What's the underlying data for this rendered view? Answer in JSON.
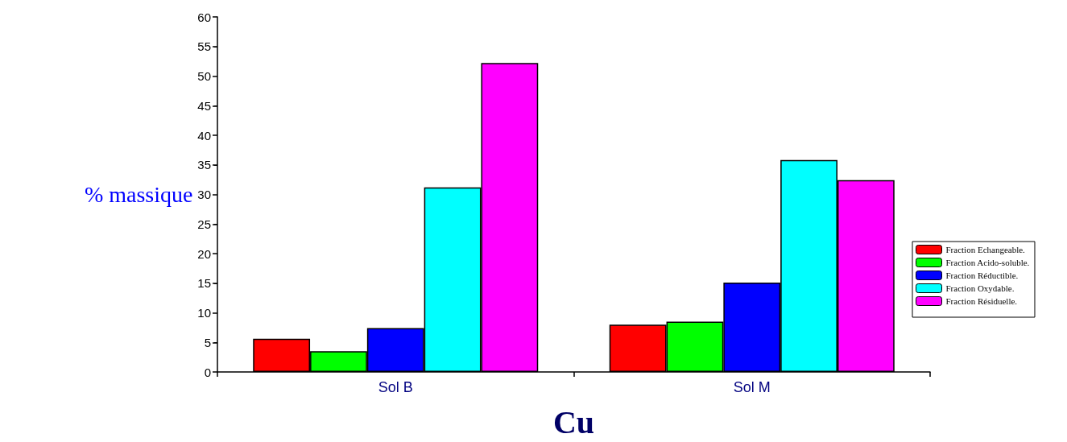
{
  "chart_data": {
    "type": "bar",
    "xlabel": "Cu",
    "ylabel": "% massique",
    "categories": [
      "Sol B",
      "Sol M"
    ],
    "series": [
      {
        "name": "Fraction Echangeable.",
        "color": "#ff0000",
        "values": [
          5.6,
          8.0
        ]
      },
      {
        "name": "Fraction Acido-soluble.",
        "color": "#00ff00",
        "values": [
          3.5,
          8.5
        ]
      },
      {
        "name": "Fraction Réductible.",
        "color": "#0000ff",
        "values": [
          7.4,
          15.1
        ]
      },
      {
        "name": "Fraction Oxydable.",
        "color": "#00ffff",
        "values": [
          31.2,
          35.8
        ]
      },
      {
        "name": "Fraction Résiduelle.",
        "color": "#ff00ff",
        "values": [
          52.2,
          32.4
        ]
      }
    ],
    "ylim": [
      0,
      60
    ],
    "yticks": [
      0,
      5,
      10,
      15,
      20,
      25,
      30,
      35,
      40,
      45,
      50,
      55,
      60
    ],
    "grid": false,
    "legend": "right"
  }
}
